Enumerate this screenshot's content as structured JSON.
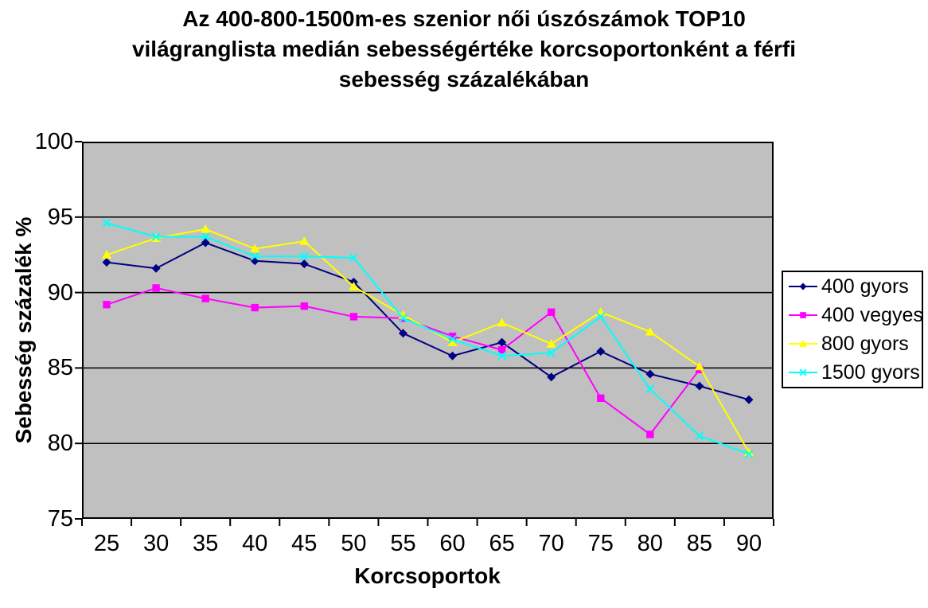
{
  "title_lines": [
    "Az 400-800-1500m-es szenior női úszószámok TOP10",
    "világranglista medián sebességértéke korcsoportonként a férfi",
    "sebesség százalékában"
  ],
  "axes": {
    "y_ticks": [
      100,
      95,
      90,
      85,
      80,
      75
    ],
    "grid_color": "#000000",
    "plot_border_color": "#000000"
  },
  "chart_data": {
    "type": "line",
    "title": "Az 400-800-1500m-es szenior női úszószámok TOP10 világranglista medián sebességértéke korcsoportonként a férfi sebesség százalékában",
    "xlabel": "Korcsoportok",
    "ylabel": "Sebesség százalék %",
    "ylim": [
      75,
      100
    ],
    "grid_step": 5,
    "grid": true,
    "plot_bg": "#C0C0C0",
    "legend_position": "right",
    "categories": [
      25,
      30,
      35,
      40,
      45,
      50,
      55,
      60,
      65,
      70,
      75,
      80,
      85,
      90
    ],
    "series": [
      {
        "name": "400 gyors",
        "color": "#000080",
        "marker": "diamond",
        "values": [
          92.0,
          91.6,
          93.3,
          92.1,
          91.9,
          90.7,
          87.3,
          85.8,
          86.7,
          84.4,
          86.1,
          84.6,
          83.8,
          82.9
        ]
      },
      {
        "name": "400 vegyes",
        "color": "#FF00FF",
        "marker": "square",
        "values": [
          89.2,
          90.3,
          89.6,
          89.0,
          89.1,
          88.4,
          88.3,
          87.1,
          86.2,
          88.7,
          83.0,
          80.6,
          84.9,
          null
        ]
      },
      {
        "name": "800 gyors",
        "color": "#FFFF00",
        "marker": "triangle",
        "values": [
          92.5,
          93.6,
          94.2,
          92.9,
          93.4,
          90.4,
          88.5,
          86.7,
          88.0,
          86.6,
          88.7,
          87.4,
          85.1,
          79.4
        ]
      },
      {
        "name": "1500 gyors",
        "color": "#00FFFF",
        "marker": "x",
        "values": [
          94.6,
          93.7,
          93.7,
          92.4,
          92.4,
          92.3,
          88.3,
          86.9,
          85.8,
          86.0,
          88.4,
          83.6,
          80.5,
          79.3
        ]
      }
    ]
  }
}
